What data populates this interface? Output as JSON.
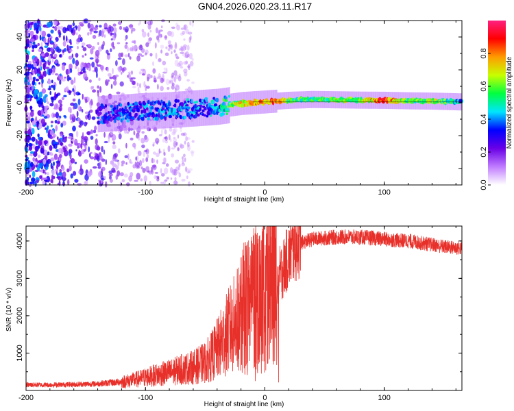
{
  "title": "GN04.2026.020.23.11.R17",
  "colors": {
    "snr_line": "#e8302a",
    "frame": "#000000",
    "ridge": "#000000",
    "background": "#ffffff"
  },
  "chart_data": [
    {
      "type": "heatmap",
      "title": "GN04.2026.020.23.11.R17",
      "xlabel": "Height of straight line (km)",
      "ylabel": "Frequency (Hz)",
      "xlim": [
        -200,
        165
      ],
      "ylim": [
        -50,
        50
      ],
      "xticks": [
        -200,
        -100,
        0,
        100
      ],
      "yticks": [
        -40,
        -20,
        0,
        20,
        40
      ],
      "colorbar": {
        "label": "Normalized spectral amplitude",
        "range": [
          0,
          1
        ],
        "ticks": [
          0.0,
          0.2,
          0.4,
          0.6,
          0.8
        ],
        "tick_labels": [
          "0.0",
          "0.2",
          "0.4",
          "0.6",
          "0.8"
        ],
        "colormap": [
          "#ffffff",
          "#c07cff",
          "#6a00e6",
          "#0000ff",
          "#00e5ff",
          "#00ff40",
          "#c8ff00",
          "#ff9c00",
          "#ff0000",
          "#ff2080"
        ]
      },
      "ridge": {
        "x": [
          -140,
          -120,
          -100,
          -80,
          -60,
          -40,
          -30,
          -20,
          -10,
          0,
          10,
          20,
          40,
          60,
          80,
          100,
          120,
          140,
          165
        ],
        "y": [
          -7,
          -6,
          -5,
          -4.5,
          -3.5,
          -2.5,
          -1.5,
          -0.5,
          0,
          0.5,
          1,
          1.5,
          2,
          1.8,
          1.6,
          1.5,
          1.2,
          1,
          0.5
        ]
      },
      "ridge_amplitude": {
        "x": [
          -140,
          -120,
          -100,
          -80,
          -60,
          -40,
          -30,
          -20,
          -10,
          0,
          10,
          20,
          40,
          60,
          80,
          100,
          120,
          140,
          165
        ],
        "amp": [
          0.3,
          0.35,
          0.35,
          0.38,
          0.38,
          0.42,
          0.55,
          0.7,
          0.75,
          0.8,
          0.85,
          0.6,
          0.55,
          0.62,
          0.6,
          0.9,
          0.55,
          0.65,
          0.45
        ]
      }
    },
    {
      "type": "line",
      "xlabel": "Height of straight line (km)",
      "ylabel": "SNR (10 * v/v)",
      "xlim": [
        -200,
        165
      ],
      "ylim": [
        0,
        4400
      ],
      "xticks": [
        -200,
        -100,
        0,
        100
      ],
      "yticks": [
        1000,
        2000,
        3000,
        4000
      ],
      "series": [
        {
          "name": "SNR",
          "x": [
            -200,
            -180,
            -160,
            -140,
            -120,
            -110,
            -100,
            -90,
            -80,
            -70,
            -60,
            -50,
            -45,
            -40,
            -35,
            -30,
            -25,
            -20,
            -15,
            -10,
            -5,
            0,
            5,
            10,
            15,
            20,
            25,
            30,
            40,
            50,
            60,
            70,
            80,
            90,
            100,
            110,
            120,
            130,
            140,
            150,
            165
          ],
          "y": [
            150,
            150,
            160,
            180,
            230,
            280,
            350,
            420,
            480,
            560,
            620,
            750,
            900,
            1100,
            1350,
            1600,
            1800,
            2000,
            2300,
            2500,
            2600,
            2700,
            2800,
            2950,
            3250,
            3600,
            3850,
            3950,
            4050,
            4080,
            4100,
            4110,
            4100,
            4080,
            4050,
            4020,
            4000,
            3950,
            3900,
            3850,
            3800
          ]
        }
      ]
    }
  ]
}
